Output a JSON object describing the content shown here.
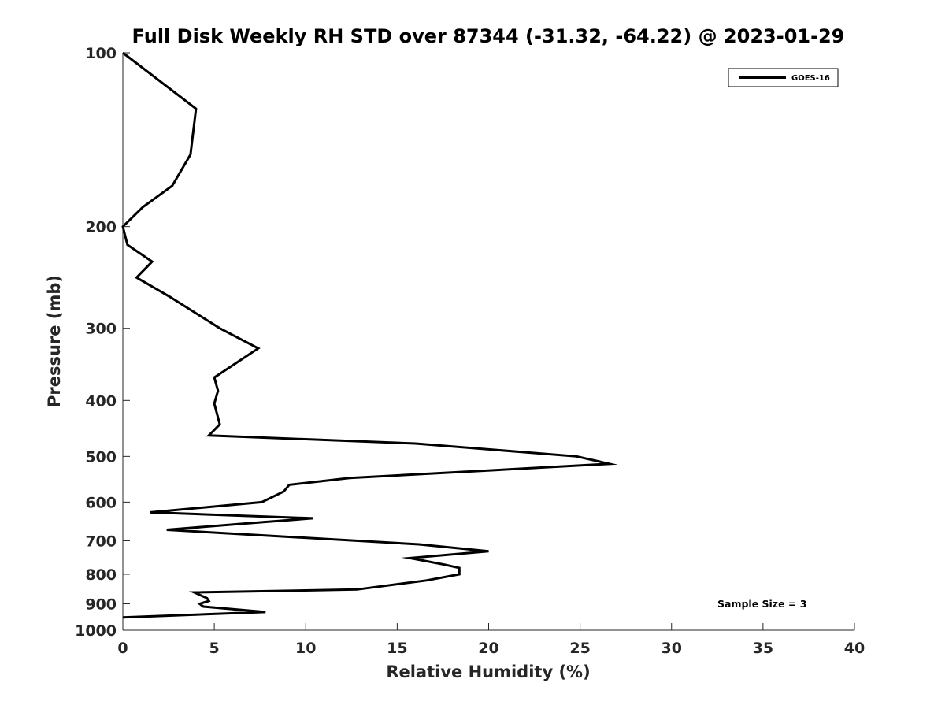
{
  "chart_data": {
    "type": "line",
    "title": "Full Disk Weekly RH STD over 87344 (-31.32, -64.22) @ 2023-01-29",
    "xlabel": "Relative Humidity (%)",
    "ylabel": "Pressure (mb)",
    "xlim": [
      0,
      40
    ],
    "ylim": [
      100,
      1000
    ],
    "y_scale": "log",
    "y_reversed": true,
    "x_ticks": [
      0,
      5,
      10,
      15,
      20,
      25,
      30,
      35,
      40
    ],
    "y_ticks": [
      100,
      200,
      300,
      400,
      500,
      600,
      700,
      800,
      900,
      1000
    ],
    "grid": false,
    "legend_position": "top-right",
    "series": [
      {
        "name": "GOES-16",
        "color": "#000000",
        "points": [
          [
            0.0,
            100
          ],
          [
            4.0,
            125
          ],
          [
            3.7,
            150
          ],
          [
            2.7,
            170
          ],
          [
            1.1,
            185
          ],
          [
            0.0,
            200
          ],
          [
            0.25,
            215
          ],
          [
            1.6,
            230
          ],
          [
            0.75,
            245
          ],
          [
            2.6,
            265
          ],
          [
            5.3,
            300
          ],
          [
            7.4,
            325
          ],
          [
            5.0,
            365
          ],
          [
            5.2,
            385
          ],
          [
            5.0,
            405
          ],
          [
            5.3,
            440
          ],
          [
            4.7,
            460
          ],
          [
            16.0,
            475
          ],
          [
            24.8,
            500
          ],
          [
            26.6,
            515
          ],
          [
            12.4,
            545
          ],
          [
            9.1,
            560
          ],
          [
            8.8,
            575
          ],
          [
            7.6,
            600
          ],
          [
            1.5,
            625
          ],
          [
            10.4,
            640
          ],
          [
            7.6,
            650
          ],
          [
            2.4,
            670
          ],
          [
            16.2,
            710
          ],
          [
            20.0,
            730
          ],
          [
            15.7,
            750
          ],
          [
            17.6,
            770
          ],
          [
            18.4,
            780
          ],
          [
            18.4,
            800
          ],
          [
            16.6,
            820
          ],
          [
            12.8,
            850
          ],
          [
            3.9,
            860
          ],
          [
            4.6,
            880
          ],
          [
            4.7,
            890
          ],
          [
            4.2,
            900
          ],
          [
            4.4,
            910
          ],
          [
            7.8,
            930
          ],
          [
            0.0,
            950
          ]
        ]
      }
    ],
    "annotation": "Sample Size = 3"
  }
}
